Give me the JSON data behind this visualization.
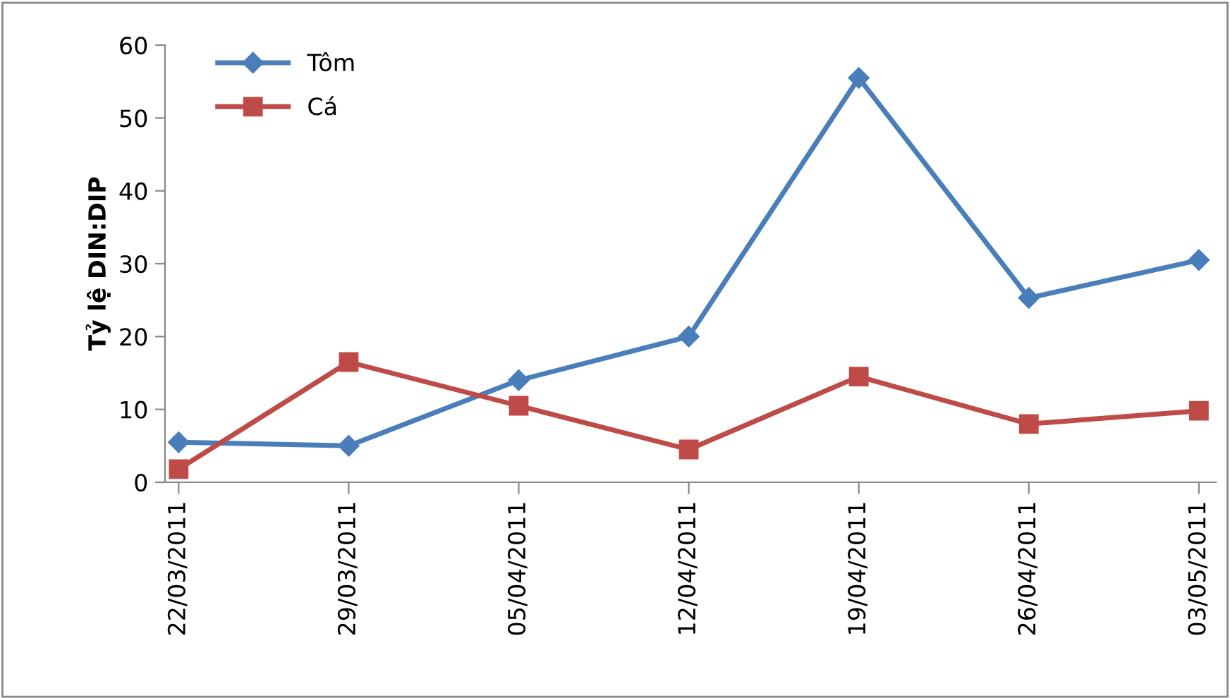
{
  "chart_data": {
    "type": "line",
    "ylabel": "Tỷ lệ DIN:DIP",
    "categories": [
      "22/03/2011",
      "29/03/2011",
      "05/04/2011",
      "12/04/2011",
      "19/04/2011",
      "26/04/2011",
      "03/05/2011"
    ],
    "series": [
      {
        "name": "Tôm",
        "color": "#4a7ebb",
        "marker": "diamond",
        "values": [
          5.5,
          5,
          14,
          20,
          55.5,
          25.3,
          30.5
        ]
      },
      {
        "name": "Cá",
        "color": "#be4b48",
        "marker": "square",
        "values": [
          1.8,
          16.5,
          10.5,
          4.5,
          14.5,
          8,
          9.8
        ]
      }
    ],
    "ylim": [
      0,
      60
    ],
    "yticks": [
      0,
      10,
      20,
      30,
      40,
      50,
      60
    ],
    "grid": false,
    "legend": "top left",
    "line_style": "solid"
  }
}
